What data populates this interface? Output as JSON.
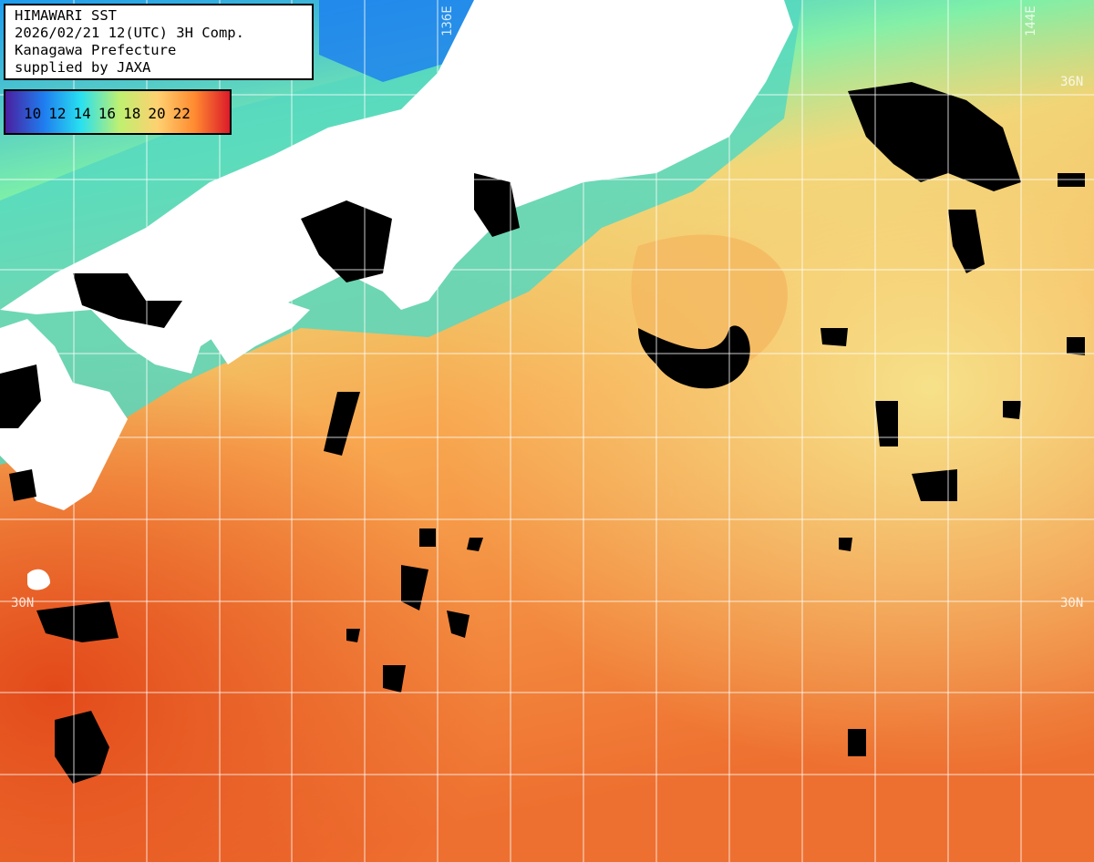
{
  "header": {
    "line1": "HIMAWARI SST",
    "line2": "2026/02/21 12(UTC) 3H Comp.",
    "line3": "Kanagawa Prefecture",
    "line4": "supplied by JAXA"
  },
  "scale": {
    "labels": [
      "10",
      "12",
      "14",
      "16",
      "18",
      "20",
      "22"
    ],
    "colors": [
      "#4a1fa0",
      "#1f7ef0",
      "#28e0f0",
      "#bff070",
      "#ffd070",
      "#ff8a30",
      "#d8102a"
    ]
  },
  "grid": {
    "lon_labels": [
      "136E",
      "144E"
    ],
    "lat_labels": [
      "36N",
      "30N"
    ]
  },
  "palette": {
    "land": "#ffffff",
    "cloud": "#000000",
    "grid": "#ffffff"
  }
}
